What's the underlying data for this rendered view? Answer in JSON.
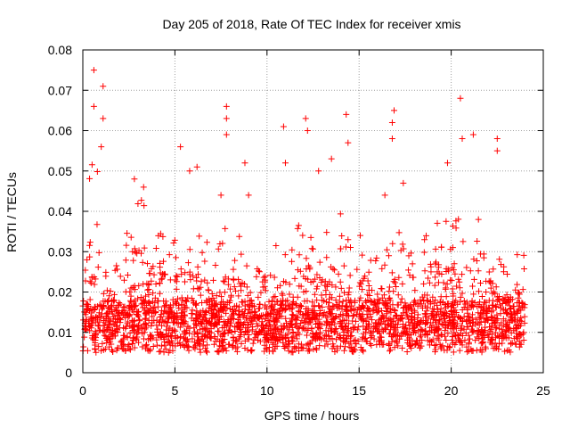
{
  "chart_data": {
    "type": "scatter",
    "title": "Day 205 of 2018, Rate Of TEC Index for receiver xmis",
    "xlabel": "GPS time / hours",
    "ylabel": "ROTI / TECUs",
    "xlim": [
      0,
      25
    ],
    "ylim": [
      0,
      0.08
    ],
    "x_ticks": [
      "0",
      "5",
      "10",
      "15",
      "20",
      "25"
    ],
    "y_ticks": [
      "0",
      "0.01",
      "0.02",
      "0.03",
      "0.04",
      "0.05",
      "0.06",
      "0.07",
      "0.08"
    ],
    "grid": true,
    "marker": "+",
    "marker_color": "#ff0000",
    "data_range": {
      "x": [
        0,
        24
      ],
      "y": [
        0.003,
        0.075
      ]
    },
    "envelope": [
      [
        0.0,
        0.028
      ],
      [
        0.3,
        0.048
      ],
      [
        0.6,
        0.06
      ],
      [
        0.9,
        0.048
      ],
      [
        1.2,
        0.04
      ],
      [
        1.5,
        0.03
      ],
      [
        2.0,
        0.025
      ],
      [
        2.5,
        0.04
      ],
      [
        3.0,
        0.045
      ],
      [
        3.5,
        0.042
      ],
      [
        4.0,
        0.04
      ],
      [
        4.5,
        0.035
      ],
      [
        5.0,
        0.035
      ],
      [
        5.5,
        0.04
      ],
      [
        6.0,
        0.04
      ],
      [
        6.5,
        0.035
      ],
      [
        7.0,
        0.03
      ],
      [
        7.5,
        0.035
      ],
      [
        8.0,
        0.04
      ],
      [
        8.5,
        0.035
      ],
      [
        9.0,
        0.032
      ],
      [
        9.5,
        0.028
      ],
      [
        10.0,
        0.038
      ],
      [
        10.5,
        0.034
      ],
      [
        11.0,
        0.032
      ],
      [
        11.5,
        0.036
      ],
      [
        12.0,
        0.04
      ],
      [
        12.5,
        0.036
      ],
      [
        13.0,
        0.034
      ],
      [
        13.5,
        0.038
      ],
      [
        14.0,
        0.04
      ],
      [
        14.5,
        0.035
      ],
      [
        15.0,
        0.034
      ],
      [
        15.5,
        0.034
      ],
      [
        16.0,
        0.03
      ],
      [
        16.5,
        0.032
      ],
      [
        17.0,
        0.036
      ],
      [
        17.5,
        0.034
      ],
      [
        18.0,
        0.03
      ],
      [
        18.5,
        0.036
      ],
      [
        19.0,
        0.04
      ],
      [
        19.5,
        0.04
      ],
      [
        20.0,
        0.038
      ],
      [
        20.5,
        0.04
      ],
      [
        21.0,
        0.04
      ],
      [
        21.5,
        0.038
      ],
      [
        22.0,
        0.034
      ],
      [
        22.5,
        0.03
      ],
      [
        23.0,
        0.028
      ],
      [
        23.5,
        0.03
      ],
      [
        24.0,
        0.03
      ]
    ],
    "notable_points": [
      [
        0.6,
        0.075
      ],
      [
        0.6,
        0.066
      ],
      [
        1.1,
        0.071
      ],
      [
        1.1,
        0.063
      ],
      [
        1.0,
        0.056
      ],
      [
        7.8,
        0.066
      ],
      [
        7.8,
        0.063
      ],
      [
        7.8,
        0.059
      ],
      [
        10.9,
        0.061
      ],
      [
        12.1,
        0.063
      ],
      [
        12.2,
        0.06
      ],
      [
        14.3,
        0.064
      ],
      [
        16.9,
        0.065
      ],
      [
        16.8,
        0.062
      ],
      [
        16.8,
        0.058
      ],
      [
        20.5,
        0.068
      ],
      [
        20.6,
        0.058
      ],
      [
        21.2,
        0.059
      ],
      [
        22.5,
        0.058
      ],
      [
        22.5,
        0.055
      ],
      [
        5.3,
        0.056
      ],
      [
        6.2,
        0.051
      ],
      [
        13.5,
        0.053
      ],
      [
        19.8,
        0.052
      ],
      [
        8.8,
        0.052
      ],
      [
        9.0,
        0.044
      ],
      [
        11.0,
        0.052
      ],
      [
        12.8,
        0.05
      ],
      [
        14.4,
        0.057
      ],
      [
        16.4,
        0.044
      ],
      [
        17.4,
        0.047
      ],
      [
        2.8,
        0.048
      ],
      [
        3.3,
        0.046
      ],
      [
        5.8,
        0.05
      ],
      [
        7.5,
        0.044
      ]
    ],
    "point_count": 2600
  }
}
